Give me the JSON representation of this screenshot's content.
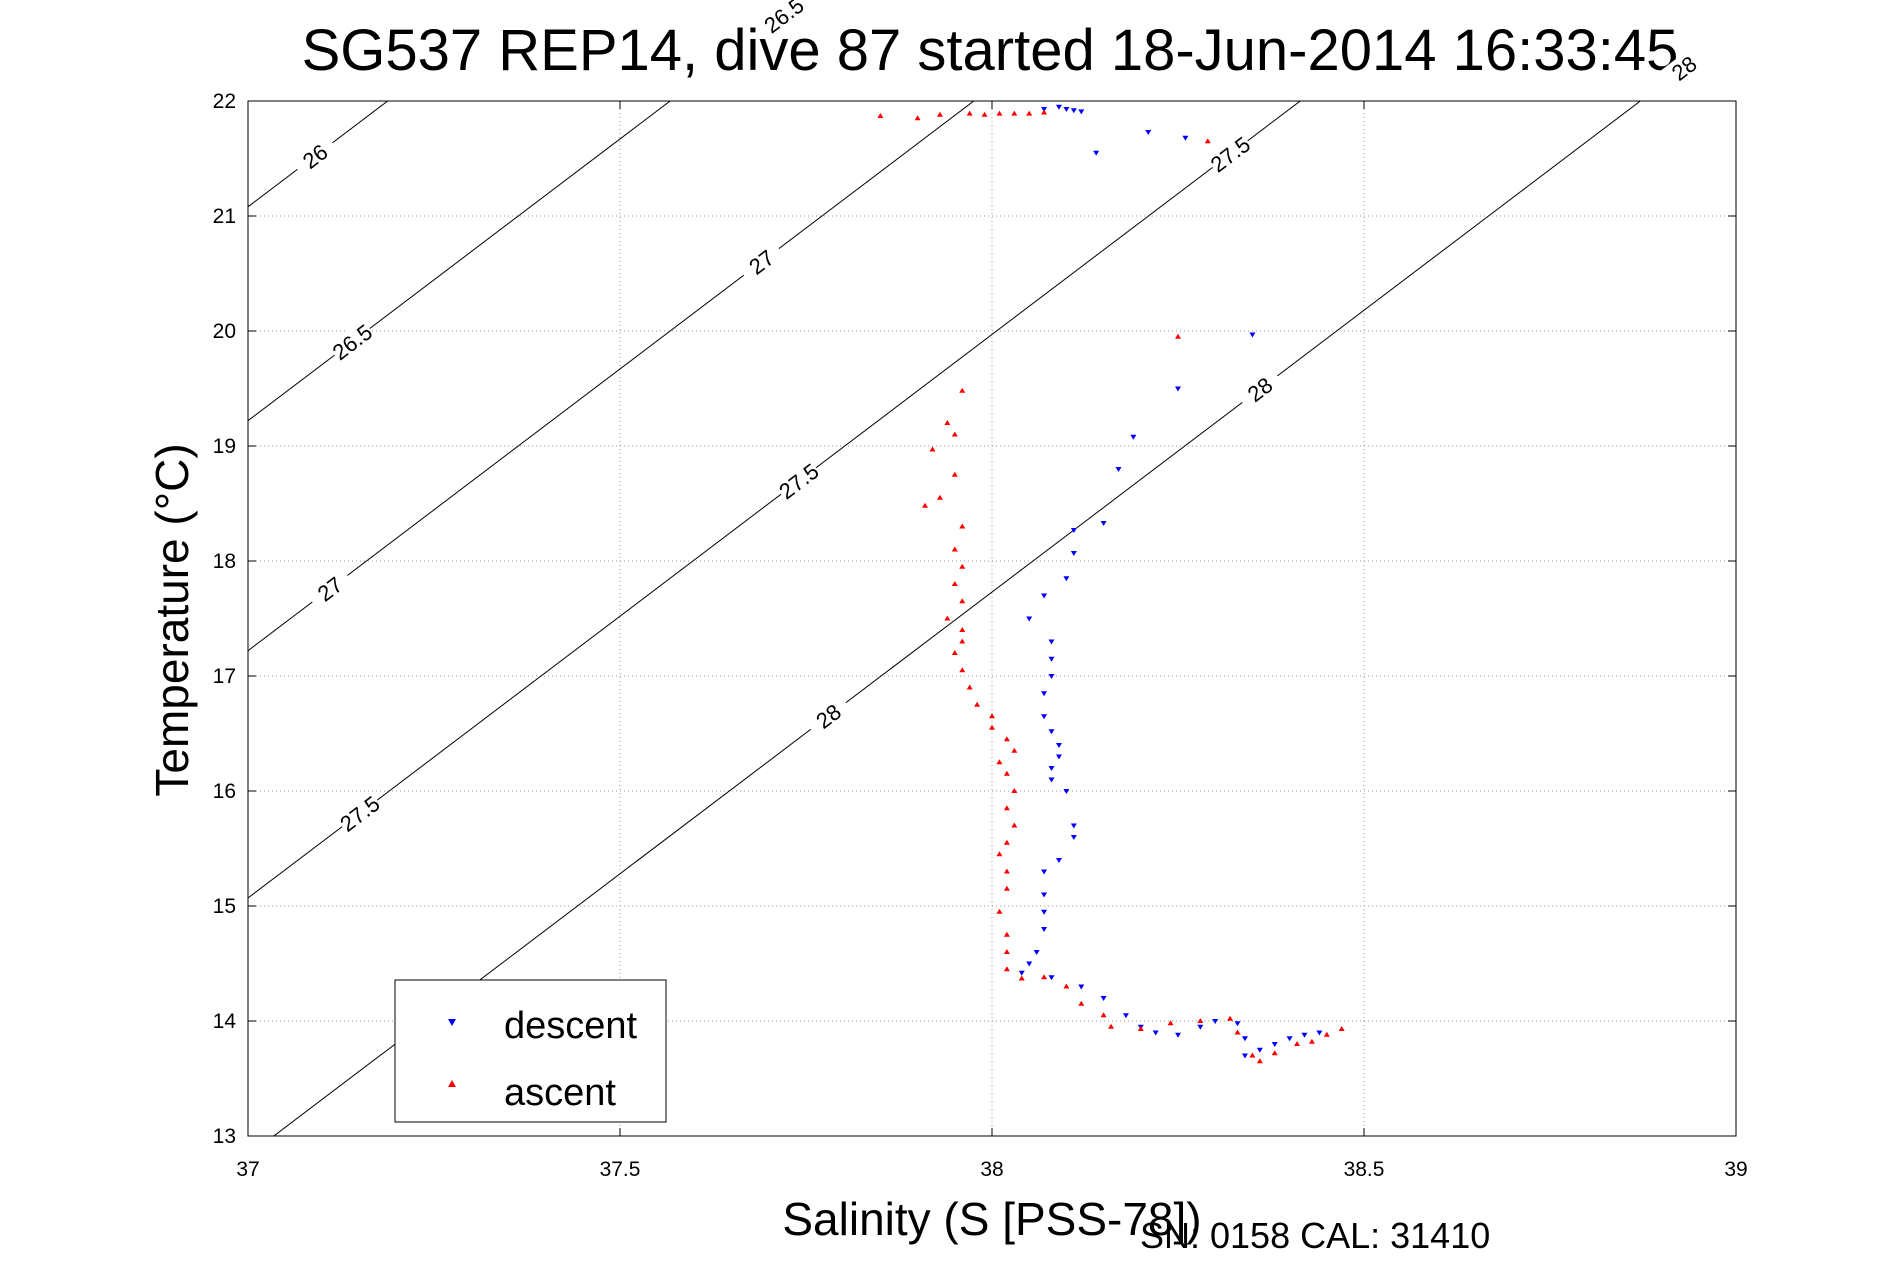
{
  "chart_data": {
    "type": "scatter",
    "title": "SG537 REP14, dive 87 started 18-Jun-2014 16:33:45",
    "xlabel": "Salinity (S [PSS-78])",
    "ylabel": "Temperature (°C)",
    "xlim": [
      37,
      39
    ],
    "ylim": [
      13,
      22
    ],
    "xticks": [
      "37",
      "37.5",
      "38",
      "38.5",
      "39"
    ],
    "yticks": [
      "13",
      "14",
      "15",
      "16",
      "17",
      "18",
      "19",
      "20",
      "21",
      "22"
    ],
    "grid": true,
    "legend": {
      "placement": "bottom-left",
      "entries": [
        "descent",
        "ascent"
      ]
    },
    "contour_labels": [
      "26",
      "26.5",
      "27",
      "27.5",
      "28"
    ],
    "series": [
      {
        "name": "descent",
        "color": "#0000ff",
        "marker": "triangle-down",
        "points": [
          [
            38.09,
            21.95
          ],
          [
            38.1,
            21.93
          ],
          [
            38.11,
            21.92
          ],
          [
            38.12,
            21.91
          ],
          [
            38.07,
            21.93
          ],
          [
            38.21,
            21.73
          ],
          [
            38.26,
            21.68
          ],
          [
            38.14,
            21.55
          ],
          [
            38.35,
            19.97
          ],
          [
            38.25,
            19.5
          ],
          [
            38.19,
            19.08
          ],
          [
            38.17,
            18.8
          ],
          [
            38.15,
            18.33
          ],
          [
            38.11,
            18.27
          ],
          [
            38.11,
            18.07
          ],
          [
            38.1,
            17.85
          ],
          [
            38.07,
            17.7
          ],
          [
            38.05,
            17.5
          ],
          [
            38.08,
            17.3
          ],
          [
            38.08,
            17.15
          ],
          [
            38.08,
            17.0
          ],
          [
            38.07,
            16.85
          ],
          [
            38.07,
            16.65
          ],
          [
            38.08,
            16.52
          ],
          [
            38.09,
            16.4
          ],
          [
            38.09,
            16.3
          ],
          [
            38.08,
            16.2
          ],
          [
            38.08,
            16.1
          ],
          [
            38.1,
            16.0
          ],
          [
            38.11,
            15.7
          ],
          [
            38.11,
            15.6
          ],
          [
            38.09,
            15.4
          ],
          [
            38.07,
            15.3
          ],
          [
            38.07,
            15.1
          ],
          [
            38.07,
            14.95
          ],
          [
            38.07,
            14.8
          ],
          [
            38.06,
            14.6
          ],
          [
            38.05,
            14.5
          ],
          [
            38.04,
            14.42
          ],
          [
            38.08,
            14.38
          ],
          [
            38.12,
            14.3
          ],
          [
            38.15,
            14.2
          ],
          [
            38.18,
            14.05
          ],
          [
            38.2,
            13.95
          ],
          [
            38.22,
            13.9
          ],
          [
            38.25,
            13.88
          ],
          [
            38.28,
            13.95
          ],
          [
            38.3,
            14.0
          ],
          [
            38.33,
            13.98
          ],
          [
            38.34,
            13.85
          ],
          [
            38.34,
            13.7
          ],
          [
            38.36,
            13.75
          ],
          [
            38.38,
            13.8
          ],
          [
            38.4,
            13.85
          ],
          [
            38.42,
            13.88
          ],
          [
            38.44,
            13.9
          ]
        ]
      },
      {
        "name": "ascent",
        "color": "#ff0000",
        "marker": "triangle-up",
        "points": [
          [
            37.85,
            21.87
          ],
          [
            37.93,
            21.88
          ],
          [
            37.97,
            21.89
          ],
          [
            37.99,
            21.88
          ],
          [
            38.01,
            21.89
          ],
          [
            38.03,
            21.89
          ],
          [
            38.05,
            21.89
          ],
          [
            38.07,
            21.9
          ],
          [
            37.9,
            21.85
          ],
          [
            38.29,
            21.65
          ],
          [
            38.25,
            19.95
          ],
          [
            37.96,
            19.48
          ],
          [
            37.94,
            19.2
          ],
          [
            37.95,
            19.1
          ],
          [
            37.92,
            18.97
          ],
          [
            37.95,
            18.75
          ],
          [
            37.93,
            18.55
          ],
          [
            37.91,
            18.48
          ],
          [
            37.96,
            18.3
          ],
          [
            37.95,
            18.1
          ],
          [
            37.96,
            17.95
          ],
          [
            37.95,
            17.8
          ],
          [
            37.96,
            17.65
          ],
          [
            37.94,
            17.5
          ],
          [
            37.96,
            17.4
          ],
          [
            37.96,
            17.3
          ],
          [
            37.95,
            17.2
          ],
          [
            37.96,
            17.05
          ],
          [
            37.97,
            16.9
          ],
          [
            37.98,
            16.75
          ],
          [
            38.0,
            16.65
          ],
          [
            38.0,
            16.55
          ],
          [
            38.02,
            16.45
          ],
          [
            38.03,
            16.35
          ],
          [
            38.01,
            16.25
          ],
          [
            38.02,
            16.15
          ],
          [
            38.03,
            16.0
          ],
          [
            38.02,
            15.85
          ],
          [
            38.03,
            15.7
          ],
          [
            38.02,
            15.55
          ],
          [
            38.01,
            15.45
          ],
          [
            38.02,
            15.3
          ],
          [
            38.02,
            15.15
          ],
          [
            38.01,
            14.95
          ],
          [
            38.02,
            14.75
          ],
          [
            38.02,
            14.6
          ],
          [
            38.02,
            14.45
          ],
          [
            38.04,
            14.37
          ],
          [
            38.07,
            14.38
          ],
          [
            38.1,
            14.3
          ],
          [
            38.12,
            14.15
          ],
          [
            38.15,
            14.05
          ],
          [
            38.16,
            13.95
          ],
          [
            38.2,
            13.93
          ],
          [
            38.24,
            13.98
          ],
          [
            38.28,
            14.0
          ],
          [
            38.32,
            14.02
          ],
          [
            38.33,
            13.9
          ],
          [
            38.35,
            13.7
          ],
          [
            38.36,
            13.65
          ],
          [
            38.38,
            13.72
          ],
          [
            38.41,
            13.8
          ],
          [
            38.43,
            13.82
          ],
          [
            38.45,
            13.88
          ],
          [
            38.47,
            13.93
          ]
        ]
      }
    ]
  },
  "footer": {
    "serial": "SN: 0158  CAL: 31410"
  }
}
